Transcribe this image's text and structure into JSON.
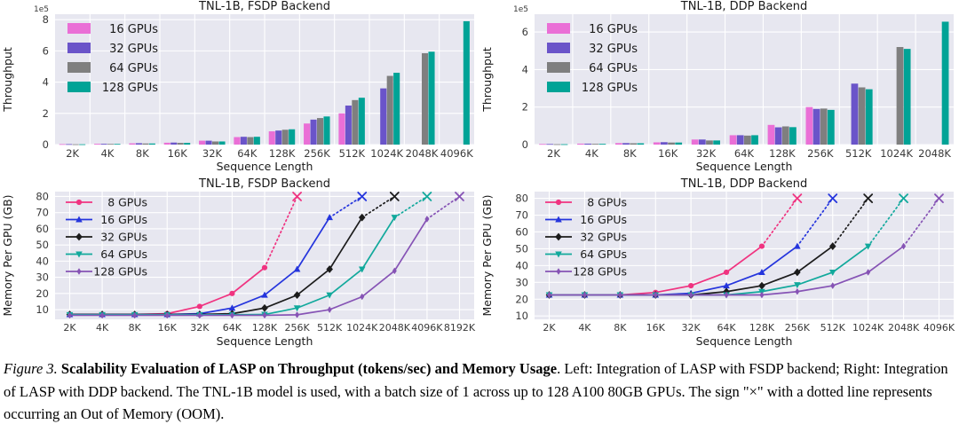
{
  "caption": {
    "label": "Figure 3.",
    "bold": "Scalability Evaluation of LASP on Throughput (tokens/sec) and Memory Usage",
    "rest": ". Left: Integration of LASP with FSDP backend; Right: Integration of LASP with DDP backend. The TNL-1B model is used, with a batch size of 1 across up to 128 A100 80GB GPUs. The sign \"×\" with a dotted line represents occurring an Out of Memory (OOM)."
  },
  "theme": {
    "plot_bg": "#e7e7f0",
    "grid_color": "#ffffff",
    "tick_color": "#3a3a3a",
    "title_color": "#1a1a1a"
  },
  "chart_data": [
    {
      "id": "throughput-fsdp",
      "type": "bar",
      "title": "TNL-1B, FSDP Backend",
      "xlabel": "Sequence Length",
      "ylabel": "Throughput",
      "offset_text": "1e5",
      "grid": true,
      "legend_position": "upper left",
      "categories": [
        "2K",
        "4K",
        "8K",
        "16K",
        "32K",
        "64K",
        "128K",
        "256K",
        "512K",
        "1024K",
        "2048K",
        "4096K"
      ],
      "yticks": [
        0,
        2,
        4,
        6,
        8
      ],
      "ylim": [
        0,
        8.35
      ],
      "series": [
        {
          "name": "16 GPUs",
          "color": "#ea6fd6",
          "values": [
            0.03,
            0.05,
            0.08,
            0.12,
            0.25,
            0.48,
            0.85,
            1.35,
            2.0,
            null,
            null,
            null
          ]
        },
        {
          "name": "32 GPUs",
          "color": "#6a54c9",
          "values": [
            0.03,
            0.05,
            0.09,
            0.13,
            0.25,
            0.5,
            0.9,
            1.6,
            2.5,
            3.6,
            null,
            null
          ]
        },
        {
          "name": "64 GPUs",
          "color": "#7f7f7f",
          "values": [
            0.02,
            0.04,
            0.07,
            0.11,
            0.2,
            0.48,
            0.95,
            1.7,
            2.85,
            4.4,
            5.85,
            null
          ]
        },
        {
          "name": "128 GPUs",
          "color": "#00a396",
          "values": [
            0.02,
            0.04,
            0.07,
            0.11,
            0.2,
            0.5,
            0.98,
            1.8,
            3.0,
            4.6,
            5.95,
            7.9
          ]
        }
      ]
    },
    {
      "id": "throughput-ddp",
      "type": "bar",
      "title": "TNL-1B, DDP Backend",
      "xlabel": "Sequence Length",
      "ylabel": "Throughput",
      "offset_text": "1e5",
      "grid": true,
      "legend_position": "upper left",
      "categories": [
        "2K",
        "4K",
        "8K",
        "16K",
        "32K",
        "64K",
        "128K",
        "256K",
        "512K",
        "1024K",
        "2048K"
      ],
      "yticks": [
        0,
        2,
        4,
        6
      ],
      "ylim": [
        0,
        6.95
      ],
      "series": [
        {
          "name": "16 GPUs",
          "color": "#ea6fd6",
          "values": [
            0.03,
            0.05,
            0.08,
            0.12,
            0.27,
            0.5,
            1.05,
            2.0,
            null,
            null,
            null
          ]
        },
        {
          "name": "32 GPUs",
          "color": "#6a54c9",
          "values": [
            0.03,
            0.05,
            0.08,
            0.13,
            0.27,
            0.5,
            0.92,
            1.9,
            3.25,
            null,
            null
          ]
        },
        {
          "name": "64 GPUs",
          "color": "#7f7f7f",
          "values": [
            0.02,
            0.04,
            0.07,
            0.11,
            0.22,
            0.48,
            0.97,
            1.92,
            3.05,
            5.2,
            null
          ]
        },
        {
          "name": "128 GPUs",
          "color": "#00a396",
          "values": [
            0.02,
            0.04,
            0.07,
            0.11,
            0.22,
            0.5,
            0.93,
            1.85,
            2.95,
            5.1,
            6.55
          ]
        }
      ]
    },
    {
      "id": "memory-fsdp",
      "type": "line",
      "title": "TNL-1B, FSDP Backend",
      "xlabel": "Sequence Length",
      "ylabel": "Memory Per GPU (GB)",
      "grid": true,
      "legend_position": "upper left",
      "oom_note": "dotted line to × marker = Out of Memory",
      "categories": [
        "2K",
        "4K",
        "8K",
        "16K",
        "32K",
        "64K",
        "128K",
        "256K",
        "512K",
        "1024K",
        "2048K",
        "4096K",
        "8192K"
      ],
      "yticks": [
        10,
        20,
        30,
        40,
        50,
        60,
        70,
        80
      ],
      "ylim": [
        4,
        83
      ],
      "series": [
        {
          "name": "8 GPUs",
          "color": "#f03380",
          "marker": "circle",
          "values": [
            7,
            7,
            7,
            7.5,
            12,
            20,
            36,
            null,
            null,
            null,
            null,
            null,
            null
          ],
          "oom_index": 7,
          "oom_value": 80
        },
        {
          "name": "16 GPUs",
          "color": "#2535dd",
          "marker": "triangle-up",
          "values": [
            7,
            7,
            7,
            7,
            7.5,
            11,
            19,
            35,
            67,
            null,
            null,
            null,
            null
          ],
          "oom_index": 9,
          "oom_value": 80
        },
        {
          "name": "32 GPUs",
          "color": "#1c1c1c",
          "marker": "diamond",
          "values": [
            7,
            7,
            7,
            7,
            7,
            7.5,
            11,
            19,
            35,
            67,
            null,
            null,
            null
          ],
          "oom_index": 10,
          "oom_value": 80
        },
        {
          "name": "64 GPUs",
          "color": "#12a99c",
          "marker": "triangle-down",
          "values": [
            6.8,
            6.8,
            6.8,
            6.8,
            6.8,
            6.8,
            7,
            11,
            19,
            35,
            67,
            null,
            null
          ],
          "oom_index": 11,
          "oom_value": 80
        },
        {
          "name": "128 GPUs",
          "color": "#8653b5",
          "marker": "thin-diamond",
          "values": [
            6.5,
            6.5,
            6.5,
            6.5,
            6.5,
            6.5,
            6.5,
            6.8,
            10,
            18,
            34,
            66,
            null
          ],
          "oom_index": 12,
          "oom_value": 80
        }
      ]
    },
    {
      "id": "memory-ddp",
      "type": "line",
      "title": "TNL-1B, DDP Backend",
      "xlabel": "Sequence Length",
      "ylabel": "Memory Per GPU (GB)",
      "grid": true,
      "legend_position": "upper left",
      "oom_note": "dotted line to × marker = Out of Memory",
      "categories": [
        "2K",
        "4K",
        "8K",
        "16K",
        "32K",
        "64K",
        "128K",
        "256K",
        "512K",
        "1024K",
        "2048K",
        "4096K"
      ],
      "yticks": [
        10,
        20,
        30,
        40,
        50,
        60,
        70,
        80
      ],
      "ylim": [
        8,
        84
      ],
      "series": [
        {
          "name": "8 GPUs",
          "color": "#f03380",
          "marker": "circle",
          "values": [
            22.5,
            22.5,
            22.5,
            24,
            28,
            36,
            51.5,
            null,
            null,
            null,
            null,
            null
          ],
          "oom_index": 7,
          "oom_value": 80
        },
        {
          "name": "16 GPUs",
          "color": "#2535dd",
          "marker": "triangle-up",
          "values": [
            22.5,
            22.5,
            22.5,
            22.5,
            23.5,
            28,
            36,
            51.5,
            null,
            null,
            null,
            null
          ],
          "oom_index": 8,
          "oom_value": 80
        },
        {
          "name": "32 GPUs",
          "color": "#1c1c1c",
          "marker": "diamond",
          "values": [
            22.5,
            22.5,
            22.5,
            22.5,
            22.5,
            24.5,
            28,
            36,
            51.5,
            null,
            null,
            null
          ],
          "oom_index": 9,
          "oom_value": 80
        },
        {
          "name": "64 GPUs",
          "color": "#12a99c",
          "marker": "triangle-down",
          "values": [
            22.5,
            22.5,
            22.5,
            22.5,
            22.5,
            22.5,
            24.5,
            28.5,
            36,
            51.5,
            null,
            null
          ],
          "oom_index": 10,
          "oom_value": 80
        },
        {
          "name": "128 GPUs",
          "color": "#8653b5",
          "marker": "thin-diamond",
          "values": [
            22.5,
            22.5,
            22.5,
            22.5,
            22.5,
            22.5,
            22.5,
            24.5,
            28,
            36,
            51.5,
            null
          ],
          "oom_index": 11,
          "oom_value": 80
        }
      ]
    }
  ]
}
